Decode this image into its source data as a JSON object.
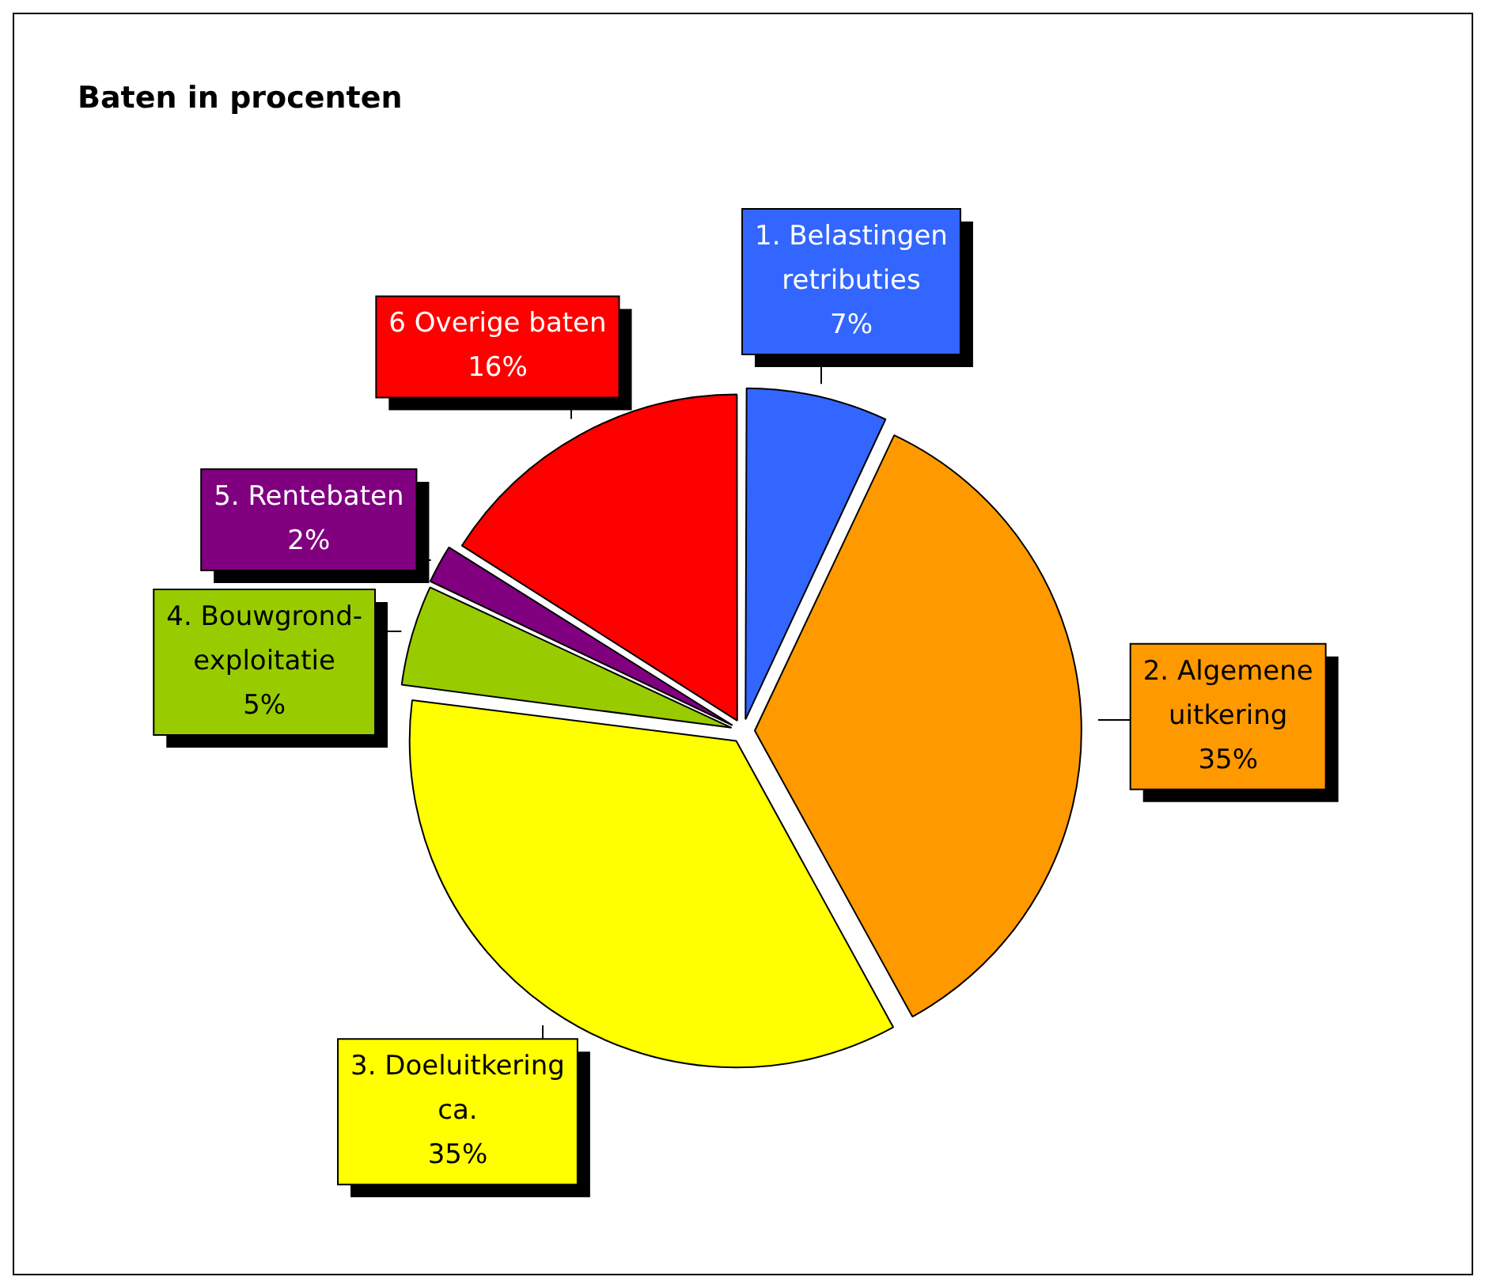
{
  "chart_data": {
    "type": "pie",
    "title": "Baten in procenten",
    "categories": [
      "1. Belastingen retributies",
      "2. Algemene uitkering",
      "3. Doeluitkering ca.",
      "4. Bouwgrond-exploitatie",
      "5. Rentebaten",
      "6 Overige baten"
    ],
    "values": [
      7,
      35,
      35,
      5,
      2,
      16
    ],
    "value_labels": [
      "7%",
      "35%",
      "35%",
      "5%",
      "2%",
      "16%"
    ],
    "colors": [
      "#3366ff",
      "#ff9900",
      "#ffff00",
      "#99cc00",
      "#800080",
      "#ff0000"
    ],
    "legend": false
  }
}
